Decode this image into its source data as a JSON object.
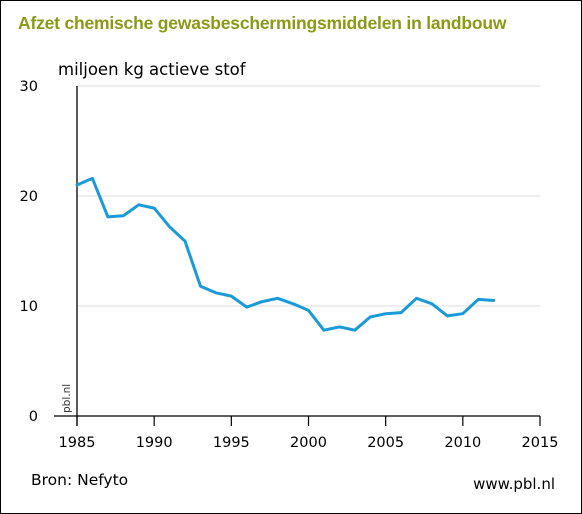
{
  "header": {
    "title": "Afzet chemische gewasbeschermingsmiddelen in landbouw"
  },
  "footer": {
    "source": "Bron: Nefyto",
    "website": "www.pbl.nl"
  },
  "chart_data": {
    "type": "line",
    "title": "Afzet chemische gewasbeschermingsmiddelen in landbouw",
    "ylabel": "miljoen kg actieve stof",
    "xlabel": "",
    "watermark": "pbl.nl",
    "xlim": [
      1985,
      2015
    ],
    "ylim": [
      0,
      30
    ],
    "x_ticks": [
      "1985",
      "1990",
      "1995",
      "2000",
      "2005",
      "2010",
      "2015"
    ],
    "y_ticks": [
      "0",
      "10",
      "20",
      "30"
    ],
    "grid": true,
    "line_color": "#1a9ad8",
    "series": [
      {
        "x": [
          1985,
          1986,
          1987,
          1988,
          1989,
          1990,
          1991,
          1992,
          1993,
          1994,
          1995,
          1996,
          1997,
          1998,
          1999,
          2000,
          2001,
          2002,
          2003,
          2004,
          2005,
          2006,
          2007,
          2008,
          2009,
          2010,
          2011,
          2012
        ],
        "values": [
          21.0,
          21.6,
          18.1,
          18.2,
          19.2,
          18.9,
          17.2,
          15.9,
          11.8,
          11.2,
          10.9,
          9.9,
          10.4,
          10.7,
          10.2,
          9.6,
          7.8,
          8.1,
          7.8,
          9.0,
          9.3,
          9.4,
          10.7,
          10.2,
          9.1,
          9.3,
          10.6,
          10.5
        ]
      }
    ]
  }
}
